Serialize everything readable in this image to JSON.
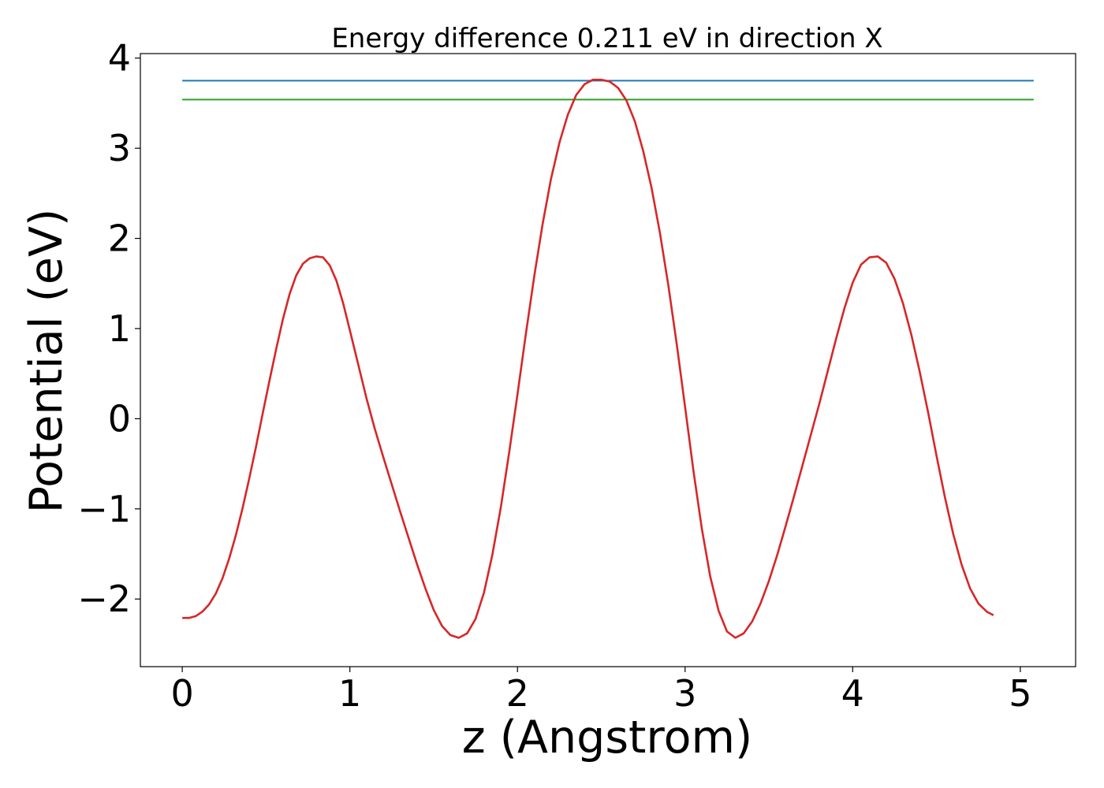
{
  "chart_data": {
    "type": "line",
    "title": "Energy difference 0.211 eV in direction X",
    "xlabel": "z (Angstrom)",
    "ylabel": "Potential (eV)",
    "xlim": [
      -0.25,
      5.33
    ],
    "ylim": [
      -2.75,
      4.05
    ],
    "x_ticks": [
      0,
      1,
      2,
      3,
      4,
      5
    ],
    "y_ticks": [
      -2,
      -1,
      0,
      1,
      2,
      3,
      4
    ],
    "x_tick_labels": [
      "0",
      "1",
      "2",
      "3",
      "4",
      "5"
    ],
    "y_tick_labels": [
      "−2",
      "−1",
      "0",
      "1",
      "2",
      "3",
      "4"
    ],
    "grid": false,
    "series": [
      {
        "color": "#1f77b4",
        "points": [
          [
            0,
            3.75
          ],
          [
            5.08,
            3.75
          ]
        ]
      },
      {
        "color": "#2ca02c",
        "points": [
          [
            0,
            3.54
          ],
          [
            5.08,
            3.54
          ]
        ]
      },
      {
        "color": "#d62728",
        "points": [
          [
            0.0,
            -2.21
          ],
          [
            0.04,
            -2.21
          ],
          [
            0.08,
            -2.19
          ],
          [
            0.12,
            -2.14
          ],
          [
            0.16,
            -2.06
          ],
          [
            0.2,
            -1.94
          ],
          [
            0.24,
            -1.77
          ],
          [
            0.28,
            -1.55
          ],
          [
            0.32,
            -1.29
          ],
          [
            0.36,
            -0.99
          ],
          [
            0.4,
            -0.66
          ],
          [
            0.44,
            -0.31
          ],
          [
            0.48,
            0.06
          ],
          [
            0.52,
            0.42
          ],
          [
            0.56,
            0.77
          ],
          [
            0.6,
            1.1
          ],
          [
            0.64,
            1.38
          ],
          [
            0.68,
            1.59
          ],
          [
            0.72,
            1.72
          ],
          [
            0.76,
            1.78
          ],
          [
            0.8,
            1.8
          ],
          [
            0.84,
            1.79
          ],
          [
            0.88,
            1.7
          ],
          [
            0.92,
            1.53
          ],
          [
            0.96,
            1.28
          ],
          [
            1.0,
            0.98
          ],
          [
            1.05,
            0.6
          ],
          [
            1.1,
            0.22
          ],
          [
            1.15,
            -0.12
          ],
          [
            1.2,
            -0.43
          ],
          [
            1.25,
            -0.73
          ],
          [
            1.3,
            -1.03
          ],
          [
            1.35,
            -1.32
          ],
          [
            1.4,
            -1.61
          ],
          [
            1.45,
            -1.88
          ],
          [
            1.5,
            -2.12
          ],
          [
            1.55,
            -2.3
          ],
          [
            1.6,
            -2.4
          ],
          [
            1.65,
            -2.43
          ],
          [
            1.7,
            -2.38
          ],
          [
            1.75,
            -2.22
          ],
          [
            1.8,
            -1.93
          ],
          [
            1.85,
            -1.51
          ],
          [
            1.9,
            -0.99
          ],
          [
            1.95,
            -0.38
          ],
          [
            2.0,
            0.27
          ],
          [
            2.05,
            0.94
          ],
          [
            2.1,
            1.58
          ],
          [
            2.15,
            2.16
          ],
          [
            2.2,
            2.66
          ],
          [
            2.25,
            3.06
          ],
          [
            2.3,
            3.37
          ],
          [
            2.35,
            3.59
          ],
          [
            2.4,
            3.71
          ],
          [
            2.45,
            3.76
          ],
          [
            2.5,
            3.76
          ],
          [
            2.55,
            3.74
          ],
          [
            2.6,
            3.67
          ],
          [
            2.65,
            3.53
          ],
          [
            2.7,
            3.3
          ],
          [
            2.75,
            2.97
          ],
          [
            2.8,
            2.56
          ],
          [
            2.85,
            2.06
          ],
          [
            2.9,
            1.48
          ],
          [
            2.95,
            0.83
          ],
          [
            3.0,
            0.13
          ],
          [
            3.05,
            -0.58
          ],
          [
            3.1,
            -1.22
          ],
          [
            3.15,
            -1.75
          ],
          [
            3.2,
            -2.13
          ],
          [
            3.25,
            -2.36
          ],
          [
            3.3,
            -2.43
          ],
          [
            3.35,
            -2.38
          ],
          [
            3.4,
            -2.25
          ],
          [
            3.45,
            -2.05
          ],
          [
            3.5,
            -1.8
          ],
          [
            3.55,
            -1.51
          ],
          [
            3.6,
            -1.19
          ],
          [
            3.65,
            -0.86
          ],
          [
            3.7,
            -0.52
          ],
          [
            3.75,
            -0.18
          ],
          [
            3.8,
            0.16
          ],
          [
            3.85,
            0.52
          ],
          [
            3.9,
            0.88
          ],
          [
            3.95,
            1.22
          ],
          [
            4.0,
            1.51
          ],
          [
            4.05,
            1.71
          ],
          [
            4.1,
            1.79
          ],
          [
            4.15,
            1.8
          ],
          [
            4.2,
            1.73
          ],
          [
            4.25,
            1.55
          ],
          [
            4.3,
            1.28
          ],
          [
            4.35,
            0.93
          ],
          [
            4.4,
            0.52
          ],
          [
            4.45,
            0.07
          ],
          [
            4.5,
            -0.41
          ],
          [
            4.55,
            -0.87
          ],
          [
            4.6,
            -1.28
          ],
          [
            4.65,
            -1.62
          ],
          [
            4.7,
            -1.88
          ],
          [
            4.75,
            -2.05
          ],
          [
            4.8,
            -2.14
          ],
          [
            4.84,
            -2.18
          ]
        ]
      }
    ]
  }
}
